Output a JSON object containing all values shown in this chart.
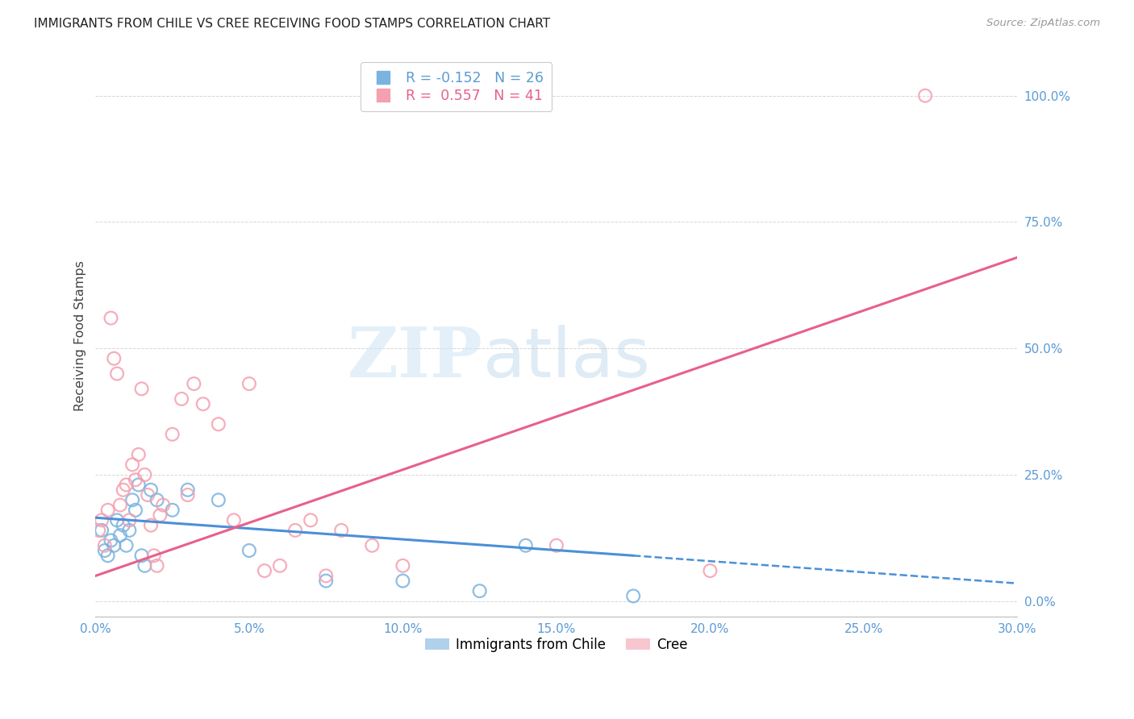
{
  "title": "IMMIGRANTS FROM CHILE VS CREE RECEIVING FOOD STAMPS CORRELATION CHART",
  "source": "Source: ZipAtlas.com",
  "xlabel_vals": [
    0,
    5,
    10,
    15,
    20,
    25,
    30
  ],
  "ylabel": "Receiving Food Stamps",
  "ylabel_vals_right": [
    0,
    25,
    50,
    75,
    100
  ],
  "xlim": [
    0,
    30
  ],
  "ylim": [
    -3,
    108
  ],
  "legend_blue_label": "Immigrants from Chile",
  "legend_pink_label": "Cree",
  "r_blue": -0.152,
  "n_blue": 26,
  "r_pink": 0.557,
  "n_pink": 41,
  "blue_color": "#7ab3e0",
  "pink_color": "#f4a0b0",
  "trendline_blue_color": "#4a90d9",
  "trendline_pink_color": "#e8608a",
  "blue_scatter_x": [
    0.2,
    0.3,
    0.4,
    0.5,
    0.6,
    0.7,
    0.8,
    0.9,
    1.0,
    1.1,
    1.2,
    1.3,
    1.4,
    1.5,
    1.6,
    1.8,
    2.0,
    2.5,
    3.0,
    4.0,
    5.0,
    7.5,
    10.0,
    12.5,
    14.0,
    17.5
  ],
  "blue_scatter_y": [
    14,
    10,
    9,
    12,
    11,
    16,
    13,
    15,
    11,
    14,
    20,
    18,
    23,
    9,
    7,
    22,
    20,
    18,
    22,
    20,
    10,
    4,
    4,
    2,
    11,
    1
  ],
  "pink_scatter_x": [
    0.1,
    0.2,
    0.3,
    0.4,
    0.5,
    0.6,
    0.7,
    0.8,
    0.9,
    1.0,
    1.1,
    1.2,
    1.3,
    1.4,
    1.5,
    1.6,
    1.7,
    1.8,
    1.9,
    2.0,
    2.1,
    2.2,
    2.5,
    2.8,
    3.0,
    3.2,
    3.5,
    4.0,
    4.5,
    5.0,
    5.5,
    6.0,
    6.5,
    7.0,
    7.5,
    8.0,
    9.0,
    10.0,
    15.0,
    20.0,
    27.0
  ],
  "pink_scatter_y": [
    14,
    16,
    11,
    18,
    56,
    48,
    45,
    19,
    22,
    23,
    16,
    27,
    24,
    29,
    42,
    25,
    21,
    15,
    9,
    7,
    17,
    19,
    33,
    40,
    21,
    43,
    39,
    35,
    16,
    43,
    6,
    7,
    14,
    16,
    5,
    14,
    11,
    7,
    11,
    6,
    100
  ],
  "blue_trend_x0": 0.0,
  "blue_trend_y0": 16.5,
  "blue_trend_x1": 17.5,
  "blue_trend_y1": 9.0,
  "blue_dash_x0": 17.5,
  "blue_dash_y0": 9.0,
  "blue_dash_x1": 30.0,
  "blue_dash_y1": 3.5,
  "pink_trend_x0": 0.0,
  "pink_trend_y0": 5.0,
  "pink_trend_x1": 30.0,
  "pink_trend_y1": 68.0,
  "watermark_zip": "ZIP",
  "watermark_atlas": "atlas",
  "background_color": "#ffffff",
  "grid_color": "#cccccc"
}
